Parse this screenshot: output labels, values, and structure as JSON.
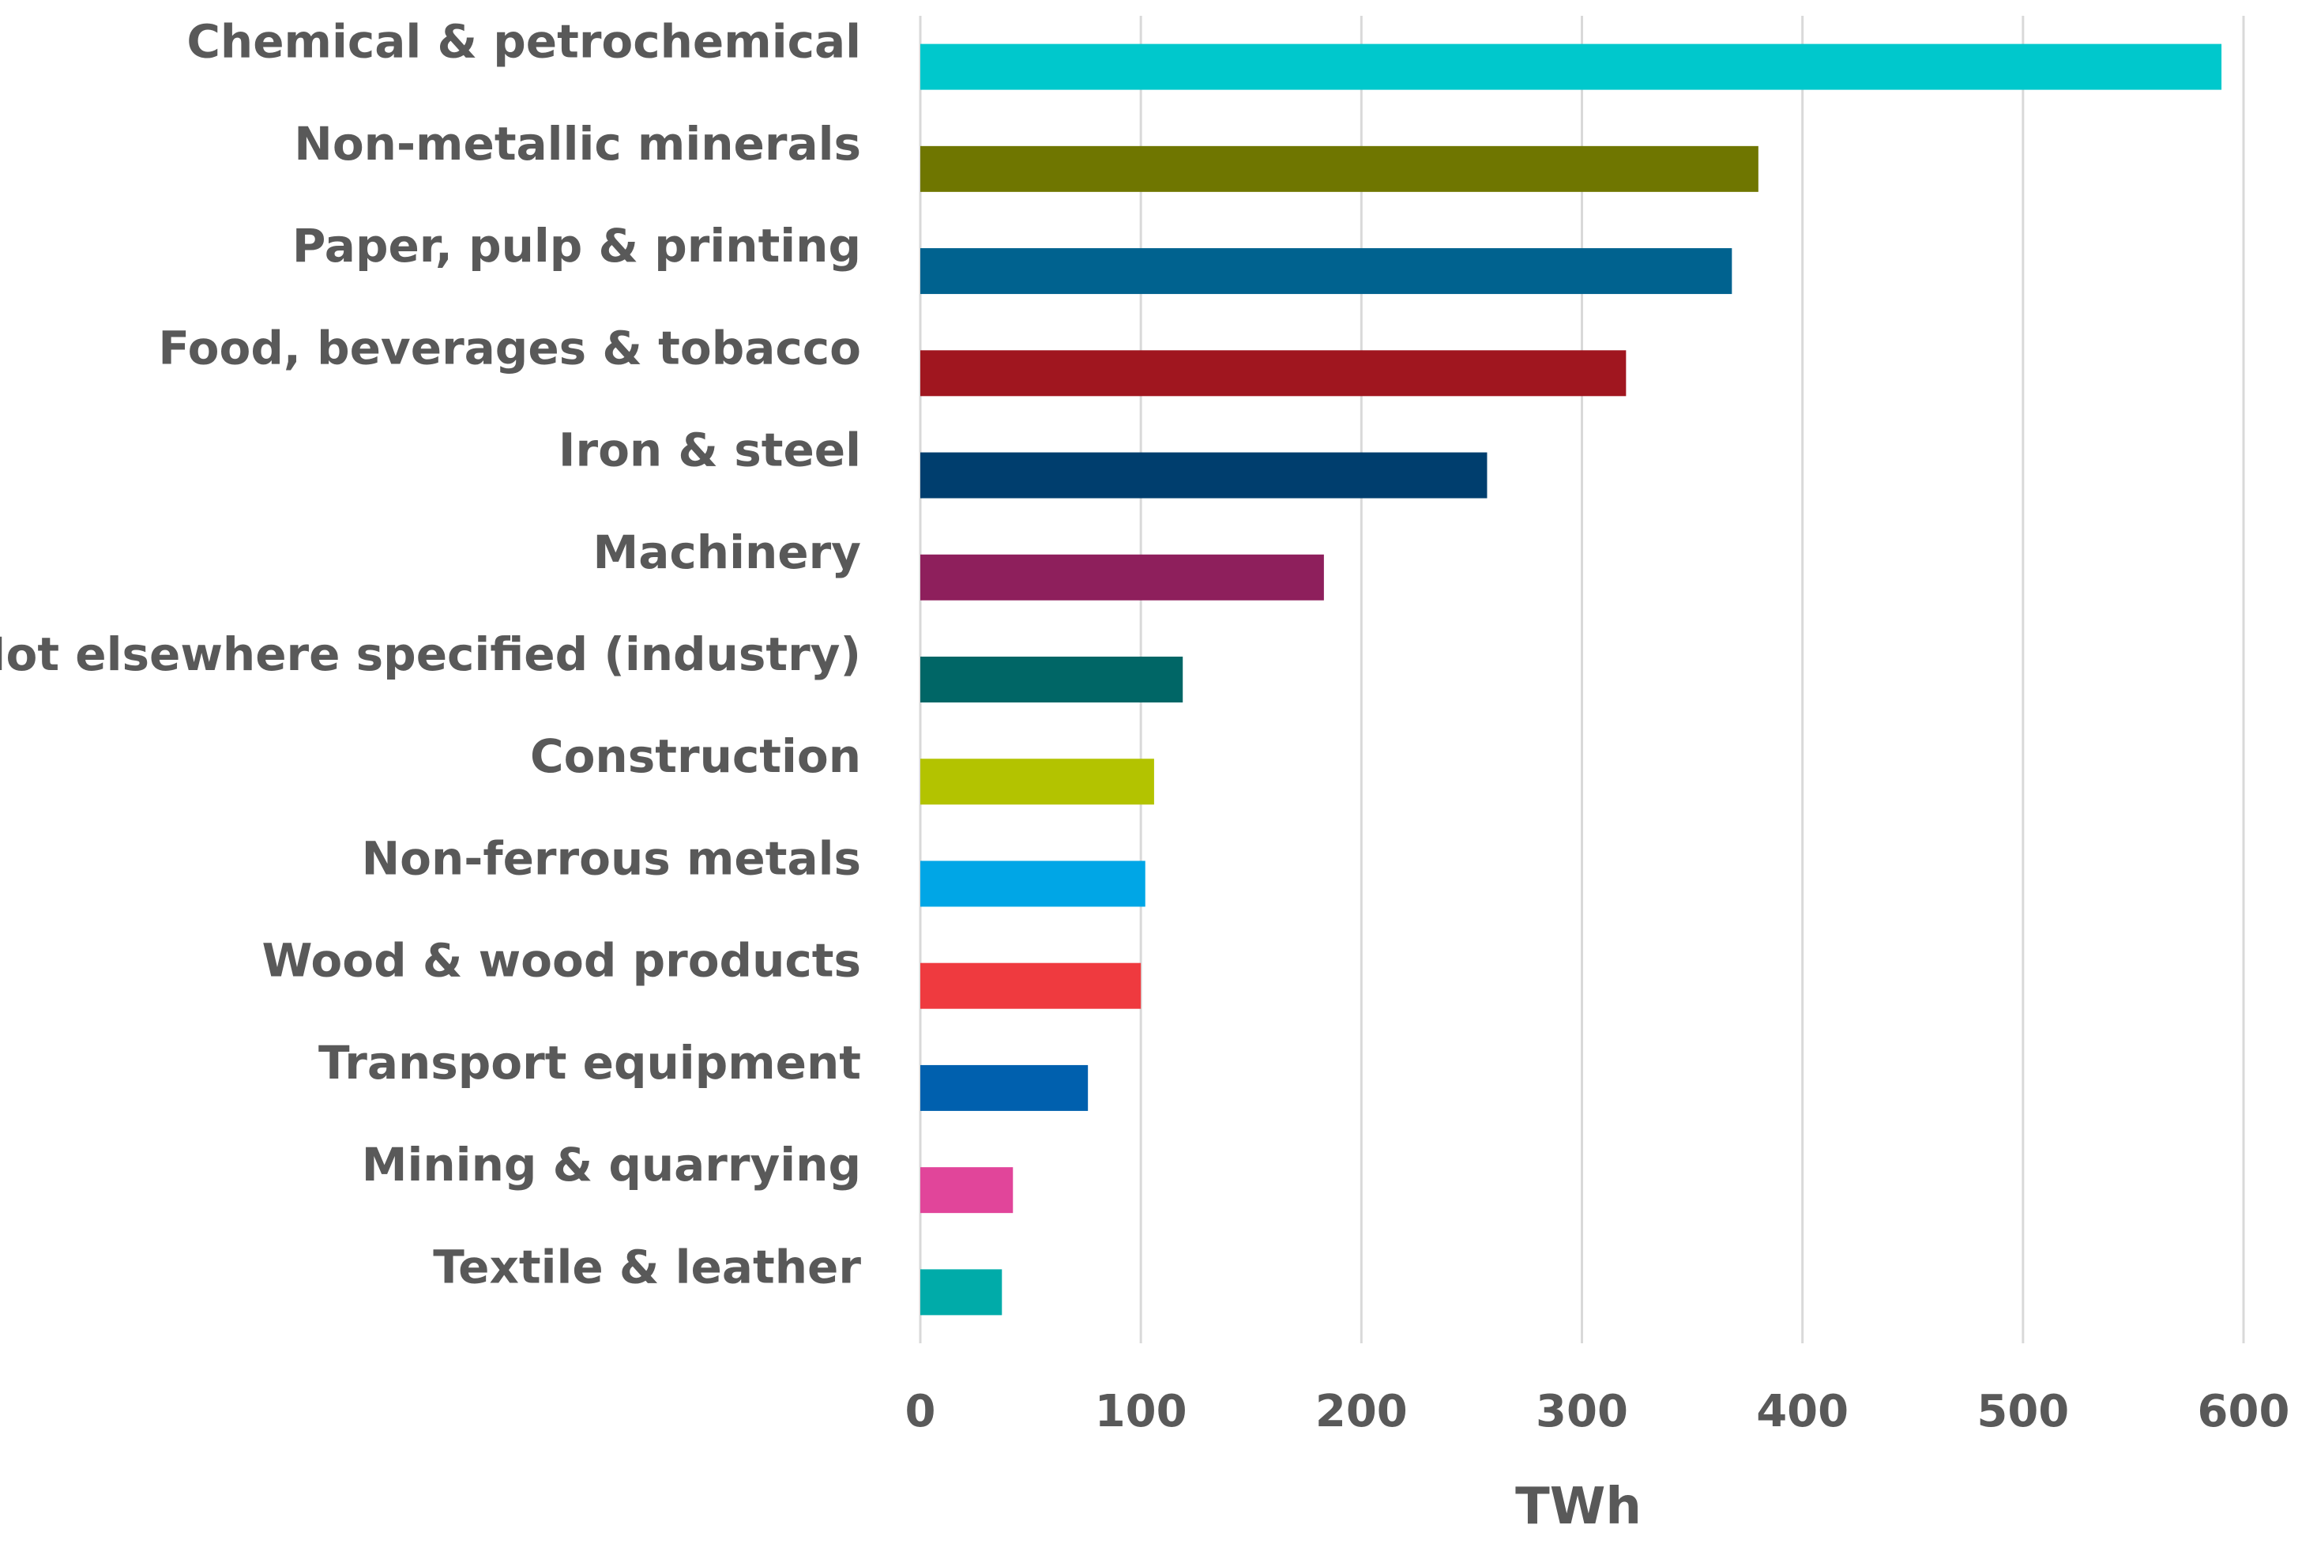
{
  "chart_data": {
    "type": "bar",
    "orientation": "horizontal",
    "title": "",
    "xlabel": "TWh",
    "ylabel": "",
    "xlim": [
      0,
      600
    ],
    "x_ticks": [
      "0",
      "100",
      "200",
      "300",
      "400",
      "500",
      "600"
    ],
    "grid": true,
    "categories": [
      "Chemical & petrochemical",
      "Non-metallic minerals",
      "Paper, pulp & printing",
      "Food, beverages & tobacco",
      "Iron & steel",
      "Machinery",
      "Not elsewhere specified (industry)",
      "Construction",
      "Non-ferrous metals",
      "Wood & wood products",
      "Transport equipment",
      "Mining & quarrying",
      "Textile & leather"
    ],
    "values": [
      590,
      380,
      368,
      320,
      257,
      183,
      119,
      106,
      102,
      100,
      76,
      42,
      37
    ],
    "colors": [
      "#00C8CC",
      "#6F7600",
      "#00628F",
      "#A0161F",
      "#003E6E",
      "#8E1F5C",
      "#006666",
      "#B3C300",
      "#00A6E6",
      "#EF3A3F",
      "#0060AE",
      "#E1459A",
      "#00ABA9"
    ]
  }
}
